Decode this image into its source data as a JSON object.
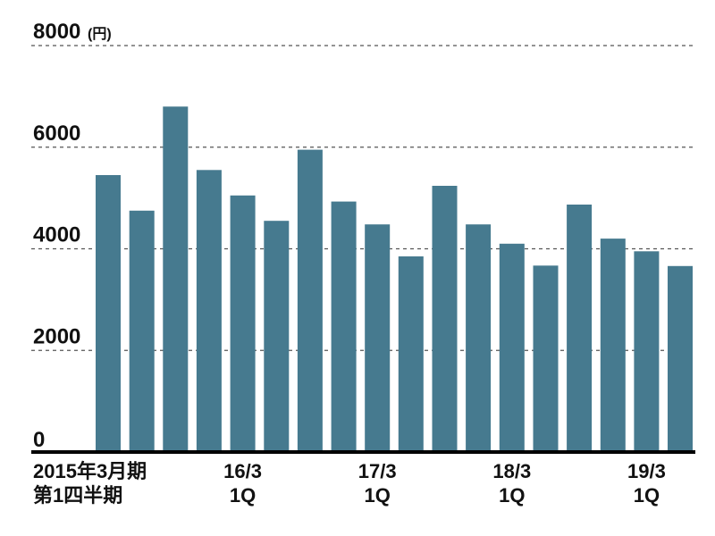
{
  "chart_data": {
    "type": "bar",
    "title": "",
    "xlabel": "",
    "ylabel": "",
    "y_unit": "(円)",
    "ylim": [
      0,
      8000
    ],
    "y_ticks": [
      0,
      2000,
      4000,
      6000,
      8000
    ],
    "grid": "horizontal dashed",
    "bar_color": "#467a8f",
    "values": [
      5450,
      4750,
      6800,
      5550,
      5050,
      4550,
      5950,
      4930,
      4480,
      3850,
      5240,
      4480,
      4100,
      3670,
      4870,
      4200,
      3950,
      3660
    ],
    "category_labels": [
      {
        "bar_index": 0,
        "lines": [
          "2015年3月期",
          "第1四半期"
        ],
        "align": "left"
      },
      {
        "bar_index": 4,
        "lines": [
          "16/3",
          "1Q"
        ],
        "align": "center"
      },
      {
        "bar_index": 8,
        "lines": [
          "17/3",
          "1Q"
        ],
        "align": "center"
      },
      {
        "bar_index": 12,
        "lines": [
          "18/3",
          "1Q"
        ],
        "align": "center"
      },
      {
        "bar_index": 16,
        "lines": [
          "19/3",
          "1Q"
        ],
        "align": "center"
      }
    ]
  }
}
